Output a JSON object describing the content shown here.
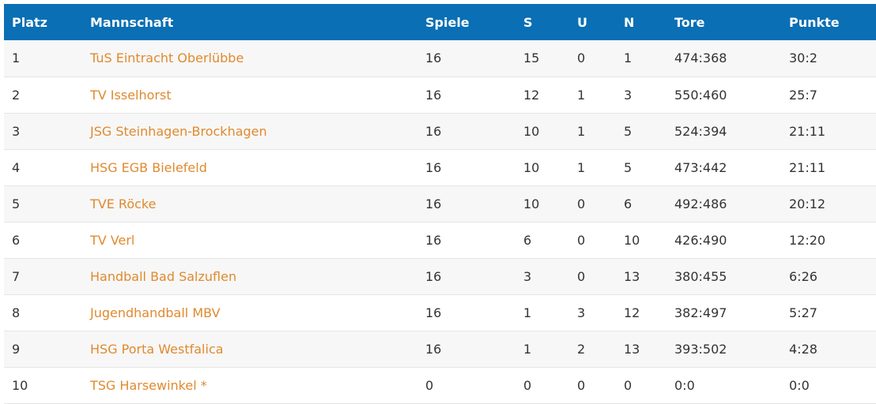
{
  "colors": {
    "header_bg": "#0a6fb4",
    "header_text": "#ffffff",
    "link": "#e08a2f",
    "row_odd": "#f7f7f7",
    "row_even": "#ffffff"
  },
  "table": {
    "headers": {
      "platz": "Platz",
      "mannschaft": "Mannschaft",
      "spiele": "Spiele",
      "s": "S",
      "u": "U",
      "n": "N",
      "tore": "Tore",
      "punkte": "Punkte"
    },
    "rows": [
      {
        "platz": "1",
        "team": "TuS Eintracht Oberlübbe",
        "spiele": "16",
        "s": "15",
        "u": "0",
        "n": "1",
        "tore": "474:368",
        "punkte": "30:2"
      },
      {
        "platz": "2",
        "team": "TV Isselhorst",
        "spiele": "16",
        "s": "12",
        "u": "1",
        "n": "3",
        "tore": "550:460",
        "punkte": "25:7"
      },
      {
        "platz": "3",
        "team": "JSG Steinhagen-Brockhagen",
        "spiele": "16",
        "s": "10",
        "u": "1",
        "n": "5",
        "tore": "524:394",
        "punkte": "21:11"
      },
      {
        "platz": "4",
        "team": "HSG EGB Bielefeld",
        "spiele": "16",
        "s": "10",
        "u": "1",
        "n": "5",
        "tore": "473:442",
        "punkte": "21:11"
      },
      {
        "platz": "5",
        "team": "TVE Röcke",
        "spiele": "16",
        "s": "10",
        "u": "0",
        "n": "6",
        "tore": "492:486",
        "punkte": "20:12"
      },
      {
        "platz": "6",
        "team": "TV Verl",
        "spiele": "16",
        "s": "6",
        "u": "0",
        "n": "10",
        "tore": "426:490",
        "punkte": "12:20"
      },
      {
        "platz": "7",
        "team": "Handball Bad Salzuflen",
        "spiele": "16",
        "s": "3",
        "u": "0",
        "n": "13",
        "tore": "380:455",
        "punkte": "6:26"
      },
      {
        "platz": "8",
        "team": "Jugendhandball MBV",
        "spiele": "16",
        "s": "1",
        "u": "3",
        "n": "12",
        "tore": "382:497",
        "punkte": "5:27"
      },
      {
        "platz": "9",
        "team": "HSG Porta Westfalica",
        "spiele": "16",
        "s": "1",
        "u": "2",
        "n": "13",
        "tore": "393:502",
        "punkte": "4:28"
      },
      {
        "platz": "10",
        "team": "TSG Harsewinkel *",
        "spiele": "0",
        "s": "0",
        "u": "0",
        "n": "0",
        "tore": "0:0",
        "punkte": "0:0"
      }
    ]
  }
}
